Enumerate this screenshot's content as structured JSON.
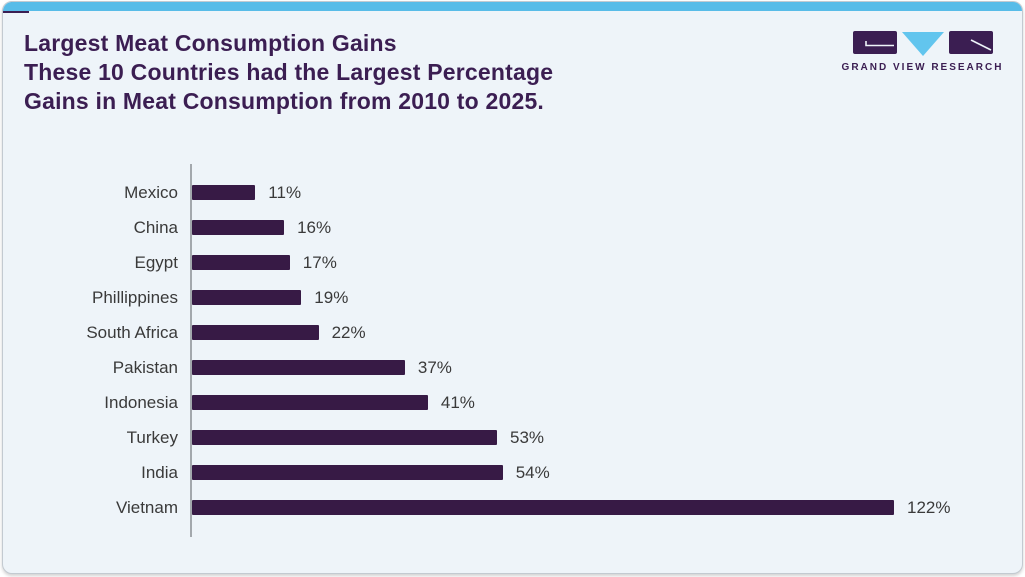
{
  "card": {
    "background": "#eef4f9",
    "border_color": "#c3cad1",
    "top_strip_color": "#58bce8",
    "corner_accent_color": "#3b1e52"
  },
  "header": {
    "title_color": "#3b1e52",
    "title_lines": [
      "Largest Meat Consumption Gains",
      "These 10 Countries had the Largest Percentage",
      "Gains in Meat Consumption from 2010 to 2025."
    ]
  },
  "logo": {
    "text": "GRAND VIEW RESEARCH",
    "purple": "#3b1e52",
    "blue": "#62c5ee"
  },
  "chart_data": {
    "type": "bar",
    "orientation": "horizontal",
    "title": "Largest Meat Consumption Gains",
    "subtitle": "These 10 Countries had the Largest Percentage Gains in Meat Consumption from 2010 to 2025.",
    "categories": [
      "Mexico",
      "China",
      "Egypt",
      "Phillippines",
      "South Africa",
      "Pakistan",
      "Indonesia",
      "Turkey",
      "India",
      "Vietnam"
    ],
    "values": [
      11,
      16,
      17,
      19,
      22,
      37,
      41,
      53,
      54,
      122
    ],
    "value_labels": [
      "11%",
      "16%",
      "17%",
      "19%",
      "22%",
      "37%",
      "41%",
      "53%",
      "54%",
      "122%"
    ],
    "xlabel": "",
    "ylabel": "",
    "xlim": [
      0,
      122
    ],
    "grid": false,
    "legend": false,
    "bar_color": "#371a45",
    "text_color": "#3a3a3a",
    "axis_color": "#a3a8ad"
  }
}
